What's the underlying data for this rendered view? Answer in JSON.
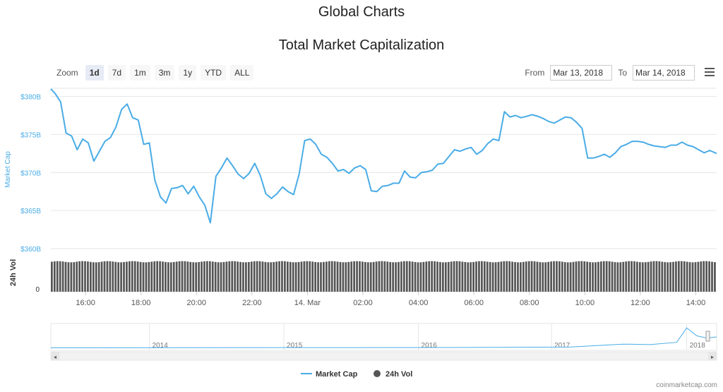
{
  "page": {
    "title": "Global Charts",
    "credit": "coinmarketcap.com"
  },
  "toolbar": {
    "zoom_label": "Zoom",
    "zoom_buttons": [
      "1d",
      "7d",
      "1m",
      "3m",
      "1y",
      "YTD",
      "ALL"
    ],
    "active_zoom": "1d",
    "from_label": "From",
    "from_value": "Mar 13, 2018",
    "to_label": "To",
    "to_value": "Mar 14, 2018",
    "menu_icon": "hamburger-menu-icon"
  },
  "colors": {
    "line": "#4aace6",
    "volume": "#555555",
    "axis_text": "#4aace6",
    "grid": "#e6e6e6"
  },
  "chart_data": {
    "type": "line",
    "title": "Total Market Capitalization",
    "ylabel": "Market Cap",
    "y2label": "24h Vol",
    "ylim": [
      360,
      382
    ],
    "yticks": [
      "$380B",
      "$375B",
      "$370B",
      "$365B",
      "$360B"
    ],
    "y2ticks": [
      "0"
    ],
    "xlim": [
      14.75,
      38.75
    ],
    "xticks": [
      {
        "t": 16,
        "label": "16:00"
      },
      {
        "t": 18,
        "label": "18:00"
      },
      {
        "t": 20,
        "label": "20:00"
      },
      {
        "t": 22,
        "label": "22:00"
      },
      {
        "t": 24,
        "label": "14. Mar"
      },
      {
        "t": 26,
        "label": "02:00"
      },
      {
        "t": 28,
        "label": "04:00"
      },
      {
        "t": 30,
        "label": "06:00"
      },
      {
        "t": 32,
        "label": "08:00"
      },
      {
        "t": 34,
        "label": "10:00"
      },
      {
        "t": 36,
        "label": "12:00"
      },
      {
        "t": 38,
        "label": "14:00"
      }
    ],
    "series": [
      {
        "name": "Market Cap",
        "x": [
          14.75,
          14.9,
          15.1,
          15.3,
          15.5,
          15.7,
          15.9,
          16.1,
          16.3,
          16.5,
          16.7,
          16.9,
          17.1,
          17.3,
          17.5,
          17.7,
          17.9,
          18.1,
          18.3,
          18.5,
          18.7,
          18.9,
          19.1,
          19.3,
          19.5,
          19.7,
          19.9,
          20.1,
          20.3,
          20.5,
          20.7,
          20.9,
          21.1,
          21.3,
          21.5,
          21.7,
          21.9,
          22.1,
          22.3,
          22.5,
          22.7,
          22.9,
          23.1,
          23.3,
          23.5,
          23.7,
          23.9,
          24.1,
          24.3,
          24.5,
          24.7,
          24.9,
          25.1,
          25.3,
          25.5,
          25.7,
          25.9,
          26.1,
          26.3,
          26.5,
          26.7,
          26.9,
          27.1,
          27.3,
          27.5,
          27.7,
          27.9,
          28.1,
          28.3,
          28.5,
          28.7,
          28.9,
          29.1,
          29.3,
          29.5,
          29.7,
          29.9,
          30.1,
          30.3,
          30.5,
          30.7,
          30.9,
          31.1,
          31.3,
          31.5,
          31.7,
          31.9,
          32.1,
          32.3,
          32.5,
          32.7,
          32.9,
          33.1,
          33.3,
          33.5,
          33.7,
          33.9,
          34.1,
          34.3,
          34.5,
          34.7,
          34.9,
          35.1,
          35.3,
          35.5,
          35.7,
          35.9,
          36.1,
          36.3,
          36.5,
          36.7,
          36.9,
          37.1,
          37.3,
          37.5,
          37.7,
          37.9,
          38.1,
          38.3,
          38.5,
          38.75
        ],
        "values": [
          381.0,
          380.4,
          379.3,
          375.2,
          374.8,
          373.0,
          374.4,
          373.9,
          371.5,
          372.8,
          374.1,
          374.6,
          376.0,
          378.3,
          379.0,
          377.2,
          376.9,
          373.7,
          373.9,
          369.0,
          366.8,
          366.0,
          367.9,
          368.0,
          368.3,
          367.2,
          368.2,
          366.8,
          365.7,
          363.4,
          369.5,
          370.6,
          371.9,
          370.9,
          369.8,
          369.2,
          369.9,
          371.2,
          369.6,
          367.2,
          366.6,
          367.2,
          368.1,
          367.5,
          367.1,
          369.8,
          374.2,
          374.4,
          373.7,
          372.4,
          372.0,
          371.2,
          370.2,
          370.4,
          369.9,
          370.6,
          370.9,
          370.4,
          367.6,
          367.5,
          368.2,
          368.3,
          368.6,
          368.6,
          370.2,
          369.4,
          369.3,
          370.0,
          370.1,
          370.3,
          371.1,
          371.2,
          372.1,
          373.0,
          372.8,
          373.1,
          373.3,
          372.4,
          372.9,
          373.8,
          374.4,
          374.2,
          378.0,
          377.3,
          377.5,
          377.2,
          377.4,
          377.6,
          377.4,
          377.1,
          376.7,
          376.5,
          376.9,
          377.3,
          377.2,
          376.6,
          375.8,
          371.9,
          371.9,
          372.1,
          372.4,
          372.0,
          372.6,
          373.4,
          373.7,
          374.1,
          374.1,
          374.0,
          373.7,
          373.5,
          373.4,
          373.3,
          373.6,
          373.6,
          374.0,
          373.6,
          373.4,
          373.0,
          372.6,
          372.9,
          372.5
        ]
      },
      {
        "name": "24h Vol"
      }
    ],
    "volume_level": 0.85,
    "navigator": {
      "labels": [
        "2014",
        "2015",
        "2016",
        "2017",
        "2018"
      ]
    },
    "legend": {
      "position": "bottom",
      "items": [
        "Market Cap",
        "24h Vol"
      ]
    }
  }
}
